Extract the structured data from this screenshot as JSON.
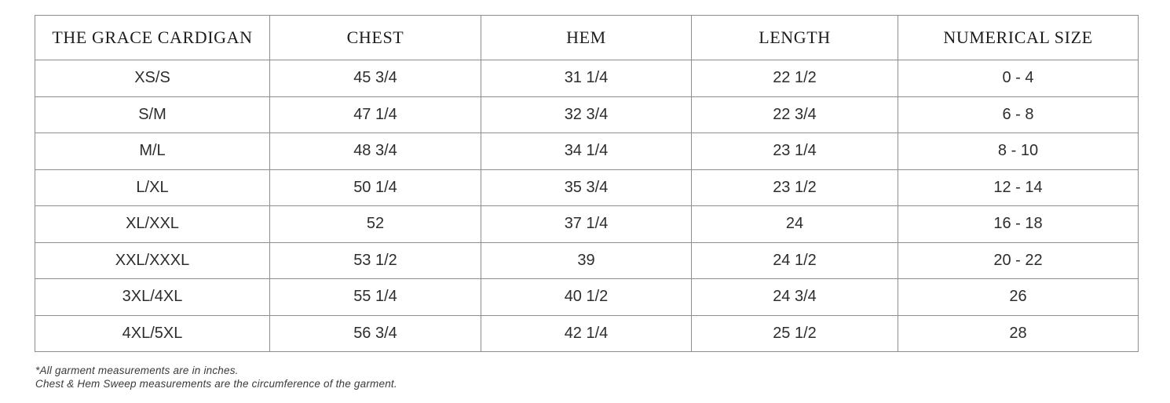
{
  "table": {
    "headers": [
      "THE GRACE CARDIGAN",
      "CHEST",
      "HEM",
      "LENGTH",
      "NUMERICAL SIZE"
    ],
    "rows": [
      [
        "XS/S",
        "45 3/4",
        "31 1/4",
        "22 1/2",
        "0 - 4"
      ],
      [
        "S/M",
        "47 1/4",
        "32 3/4",
        "22 3/4",
        "6 - 8"
      ],
      [
        "M/L",
        "48 3/4",
        "34 1/4",
        "23 1/4",
        "8 - 10"
      ],
      [
        "L/XL",
        "50 1/4",
        "35 3/4",
        "23 1/2",
        "12 - 14"
      ],
      [
        "XL/XXL",
        "52",
        "37 1/4",
        "24",
        "16 - 18"
      ],
      [
        "XXL/XXXL",
        "53 1/2",
        "39",
        "24 1/2",
        "20 - 22"
      ],
      [
        "3XL/4XL",
        "55 1/4",
        "40 1/2",
        "24 3/4",
        "26"
      ],
      [
        "4XL/5XL",
        "56 3/4",
        "42 1/4",
        "25 1/2",
        "28"
      ]
    ]
  },
  "footnotes": {
    "line1": "*All garment measurements are in inches.",
    "line2": "Chest & Hem Sweep measurements are the circumference of the garment."
  },
  "colors": {
    "border": "#8e8e8e",
    "text": "#2d2d2d",
    "background": "#ffffff"
  }
}
